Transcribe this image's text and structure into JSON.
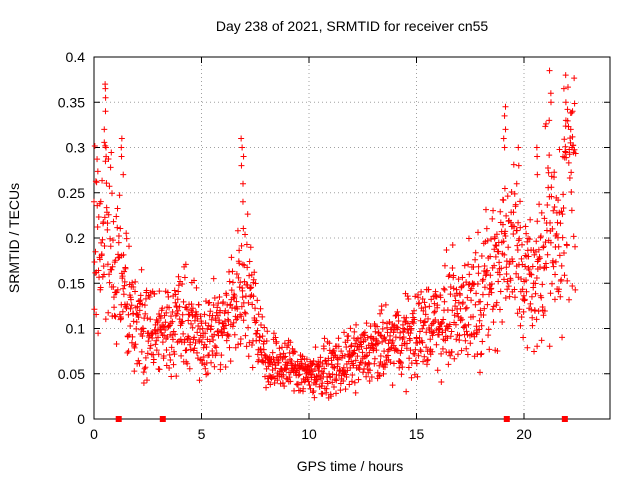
{
  "chart_data": {
    "type": "scatter",
    "title": "Day 238 of 2021, SRMTID for receiver cn55",
    "xlabel": "GPS time / hours",
    "ylabel": "SRMTID / TECUs",
    "xlim": [
      0,
      24
    ],
    "ylim": [
      0,
      0.4
    ],
    "x_ticks": [
      "0",
      "5",
      "10",
      "15",
      "20"
    ],
    "x_tick_values": [
      0,
      5,
      10,
      15,
      20
    ],
    "y_ticks": [
      "0",
      "0.05",
      "0.1",
      "0.15",
      "0.2",
      "0.25",
      "0.3",
      "0.35",
      "0.4"
    ],
    "y_tick_values": [
      0,
      0.05,
      0.1,
      0.15,
      0.2,
      0.25,
      0.3,
      0.35,
      0.4
    ],
    "grid": true,
    "marker": "+",
    "color": "#ff0000",
    "series": [
      {
        "name": "SRMTID",
        "profile": {
          "x": [
            0,
            0.3,
            0.6,
            1,
            1.5,
            2,
            3,
            4,
            5,
            6,
            6.6,
            7,
            7.6,
            8,
            9,
            10,
            11,
            12,
            13,
            14,
            15,
            16,
            17,
            18,
            18.6,
            19,
            19.5,
            20,
            20.5,
            21,
            21.5,
            22,
            22.4
          ],
          "y": [
            0.22,
            0.19,
            0.23,
            0.17,
            0.13,
            0.1,
            0.1,
            0.11,
            0.095,
            0.1,
            0.13,
            0.16,
            0.11,
            0.065,
            0.06,
            0.05,
            0.055,
            0.065,
            0.075,
            0.085,
            0.095,
            0.11,
            0.12,
            0.14,
            0.16,
            0.19,
            0.19,
            0.16,
            0.14,
            0.22,
            0.18,
            0.26,
            0.29
          ]
        },
        "highlights": [
          {
            "x": 0.5,
            "y": [
              0.3,
              0.32,
              0.34,
              0.355,
              0.365,
              0.37
            ]
          },
          {
            "x": 1.3,
            "y": [
              0.27,
              0.29,
              0.3,
              0.31
            ]
          },
          {
            "x": 6.9,
            "y": [
              0.24,
              0.26,
              0.28,
              0.29,
              0.3,
              0.31
            ]
          },
          {
            "x": 19.1,
            "y": [
              0.3,
              0.31,
              0.32,
              0.335,
              0.345
            ]
          },
          {
            "x": 19.7,
            "y": [
              0.26,
              0.28,
              0.3
            ]
          },
          {
            "x": 20.6,
            "y": [
              0.27,
              0.29,
              0.3
            ]
          },
          {
            "x": 21.2,
            "y": [
              0.33,
              0.35,
              0.36,
              0.385
            ]
          },
          {
            "x": 21.9,
            "y": [
              0.33,
              0.35,
              0.365,
              0.38
            ]
          },
          {
            "x": 22.2,
            "y": [
              0.3,
              0.32,
              0.34
            ]
          }
        ]
      }
    ],
    "baseline_marks_x": [
      1.15,
      3.2,
      19.2,
      21.9
    ]
  }
}
